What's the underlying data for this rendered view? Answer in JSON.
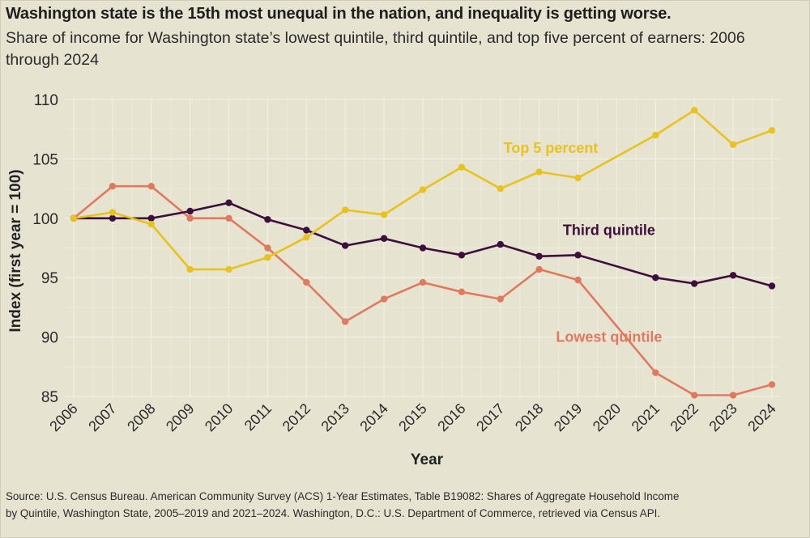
{
  "header": {
    "title": "Washington state is the 15th most unequal in the nation, and inequality is getting worse.",
    "subtitle": "Share of income for Washington state’s lowest quintile, third quintile, and top five percent of earners: 2006 through 2024"
  },
  "footer": {
    "source_line1": "Source: U.S. Census Bureau. American Community Survey (ACS) 1-Year Estimates, Table B19082: Shares of Aggregate Household Income",
    "source_line2": "by Quintile, Washington State, 2005–2019 and 2021–2024. Washington, D.C.: U.S. Department of Commerce, retrieved via Census API."
  },
  "chart_data": {
    "type": "line",
    "title": "Washington state is the 15th most unequal in the nation, and inequality is getting worse.",
    "subtitle": "Share of income for Washington state’s lowest quintile, third quintile, and top five percent of earners: 2006 through 2024",
    "xlabel": "Year",
    "ylabel": "Index (first year = 100)",
    "x_ticks": [
      2006,
      2007,
      2008,
      2009,
      2010,
      2011,
      2012,
      2013,
      2014,
      2015,
      2016,
      2017,
      2018,
      2019,
      2020,
      2021,
      2022,
      2023,
      2024
    ],
    "xlim": [
      2006,
      2024
    ],
    "y_ticks": [
      85,
      90,
      95,
      100,
      105,
      110
    ],
    "ylim": [
      85,
      110
    ],
    "grid": true,
    "legend": "direct labels on lines",
    "x": [
      2006,
      2007,
      2008,
      2009,
      2010,
      2011,
      2012,
      2013,
      2014,
      2015,
      2016,
      2017,
      2018,
      2019,
      2021,
      2022,
      2023,
      2024
    ],
    "series": [
      {
        "name": "Lowest quintile",
        "color": "#e07a5f",
        "label_at": [
          2019.8,
          89.6
        ],
        "values": [
          100,
          102.7,
          102.7,
          100,
          100,
          97.5,
          94.6,
          91.3,
          93.2,
          94.6,
          93.8,
          93.2,
          95.7,
          94.8,
          87.0,
          85.1,
          85.1,
          86.0
        ]
      },
      {
        "name": "Third quintile",
        "color": "#3d0f3d",
        "label_at": [
          2019.8,
          98.6
        ],
        "values": [
          100,
          100,
          100,
          100.6,
          101.3,
          99.9,
          99.0,
          97.7,
          98.3,
          97.5,
          96.9,
          97.8,
          96.8,
          96.9,
          95.0,
          94.5,
          95.2,
          94.3
        ]
      },
      {
        "name": "Top 5 percent",
        "color": "#e8c21f",
        "label_at": [
          2018.3,
          105.5
        ],
        "values": [
          100,
          100.5,
          99.5,
          95.7,
          95.7,
          96.7,
          98.4,
          100.7,
          100.3,
          102.4,
          104.3,
          102.5,
          103.9,
          103.4,
          107.0,
          109.1,
          106.2,
          107.4
        ]
      }
    ]
  }
}
